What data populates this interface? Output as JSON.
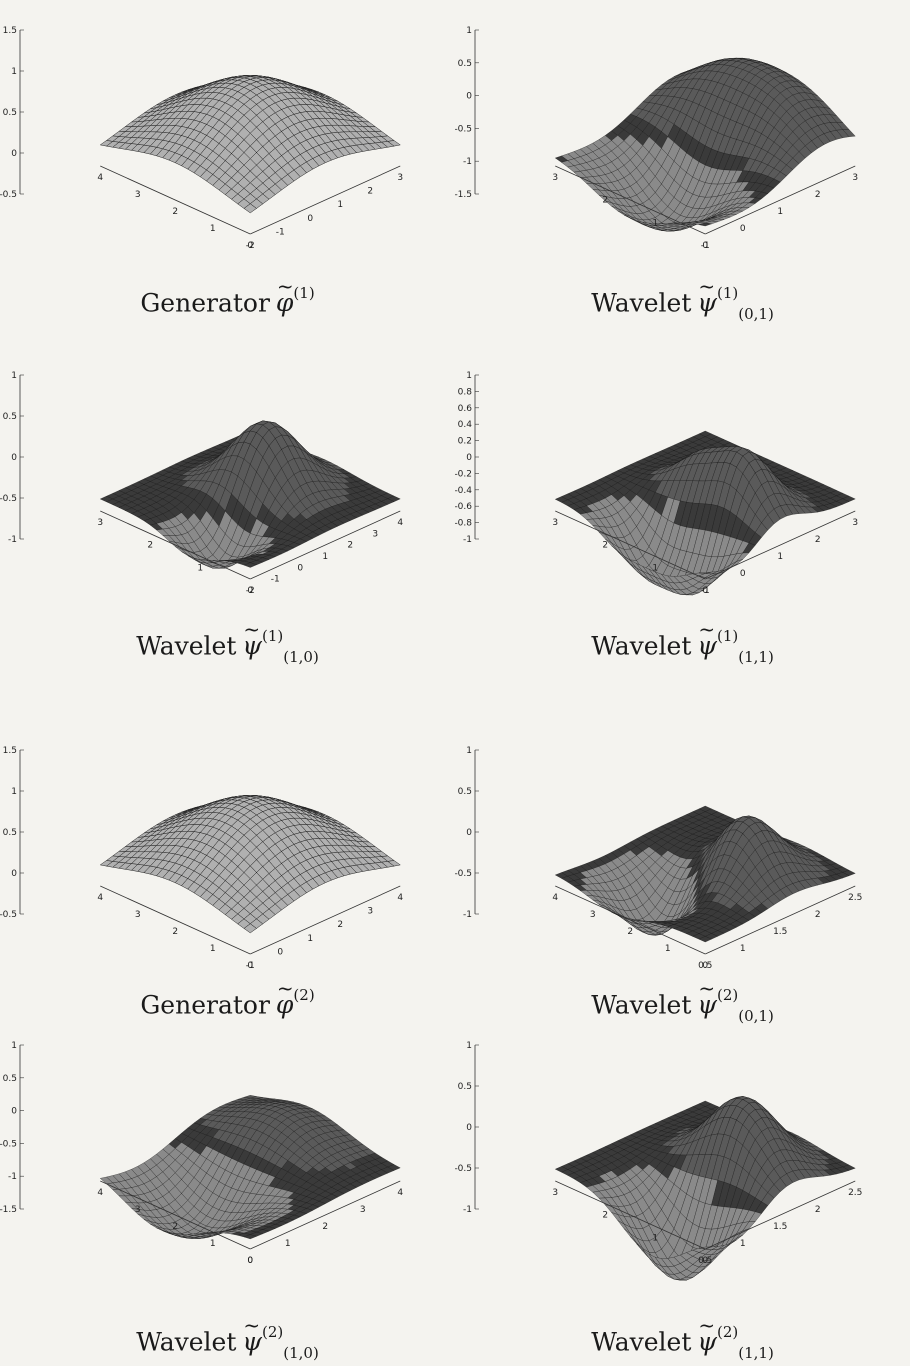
{
  "page": {
    "background": "#f4f3ef",
    "surface_dark": "#3a3a3a",
    "surface_light": "#c9c9c9"
  },
  "figures": [
    {
      "caption": {
        "label": "Generator",
        "symbol": "φ",
        "sup": "(1)",
        "sub": ""
      },
      "style": "light",
      "z_ticks": [
        "1.5",
        "1",
        "0.5",
        "0",
        "-0.5"
      ],
      "left_ticks": [
        "4",
        "3",
        "2",
        "1",
        "0"
      ],
      "right_ticks": [
        "-2",
        "-1",
        "0",
        "1",
        "2",
        "3"
      ]
    },
    {
      "caption": {
        "label": "Wavelet",
        "symbol": "ψ",
        "sup": "(1)",
        "sub": "(0,1)"
      },
      "style": "dark",
      "z_ticks": [
        "1",
        "0.5",
        "0",
        "-0.5",
        "-1",
        "-1.5"
      ],
      "left_ticks": [
        "3",
        "2",
        "1",
        "0"
      ],
      "right_ticks": [
        "-1",
        "0",
        "1",
        "2",
        "3"
      ]
    },
    {
      "caption": {
        "label": "Wavelet",
        "symbol": "ψ",
        "sup": "(1)",
        "sub": "(1,0)"
      },
      "style": "dark",
      "z_ticks": [
        "1",
        "0.5",
        "0",
        "-0.5",
        "-1"
      ],
      "left_ticks": [
        "3",
        "2",
        "1",
        "0"
      ],
      "right_ticks": [
        "-2",
        "-1",
        "0",
        "1",
        "2",
        "3",
        "4"
      ]
    },
    {
      "caption": {
        "label": "Wavelet",
        "symbol": "ψ",
        "sup": "(1)",
        "sub": "(1,1)"
      },
      "style": "dark",
      "z_ticks": [
        "1",
        "0.8",
        "0.6",
        "0.4",
        "0.2",
        "0",
        "-0.2",
        "-0.4",
        "-0.6",
        "-0.8",
        "-1"
      ],
      "left_ticks": [
        "3",
        "2",
        "1",
        "0"
      ],
      "right_ticks": [
        "-1",
        "0",
        "1",
        "2",
        "3"
      ]
    },
    {
      "caption": {
        "label": "Generator",
        "symbol": "φ",
        "sup": "(2)",
        "sub": ""
      },
      "style": "light",
      "z_ticks": [
        "1.5",
        "1",
        "0.5",
        "0",
        "-0.5"
      ],
      "left_ticks": [
        "4",
        "3",
        "2",
        "1",
        "0"
      ],
      "right_ticks": [
        "-1",
        "0",
        "1",
        "2",
        "3",
        "4"
      ]
    },
    {
      "caption": {
        "label": "Wavelet",
        "symbol": "ψ",
        "sup": "(2)",
        "sub": "(0,1)"
      },
      "style": "dark",
      "z_ticks": [
        "1",
        "0.5",
        "0",
        "-0.5",
        "-1"
      ],
      "left_ticks": [
        "4",
        "3",
        "2",
        "1",
        "0"
      ],
      "right_ticks": [
        "0.5",
        "1",
        "1.5",
        "2",
        "2.5"
      ]
    },
    {
      "caption": {
        "label": "Wavelet",
        "symbol": "ψ",
        "sup": "(2)",
        "sub": "(1,0)"
      },
      "style": "dark",
      "z_ticks": [
        "1",
        "0.5",
        "0",
        "-0.5",
        "-1",
        "-1.5"
      ],
      "left_ticks": [
        "4",
        "3",
        "2",
        "1",
        "0"
      ],
      "right_ticks": [
        "0",
        "1",
        "2",
        "3",
        "4"
      ]
    },
    {
      "caption": {
        "label": "Wavelet",
        "symbol": "ψ",
        "sup": "(2)",
        "sub": "(1,1)"
      },
      "style": "dark",
      "z_ticks": [
        "1",
        "0.5",
        "0",
        "-0.5",
        "-1"
      ],
      "left_ticks": [
        "3",
        "2",
        "1",
        "0"
      ],
      "right_ticks": [
        "0.5",
        "1",
        "1.5",
        "2",
        "2.5"
      ]
    }
  ]
}
